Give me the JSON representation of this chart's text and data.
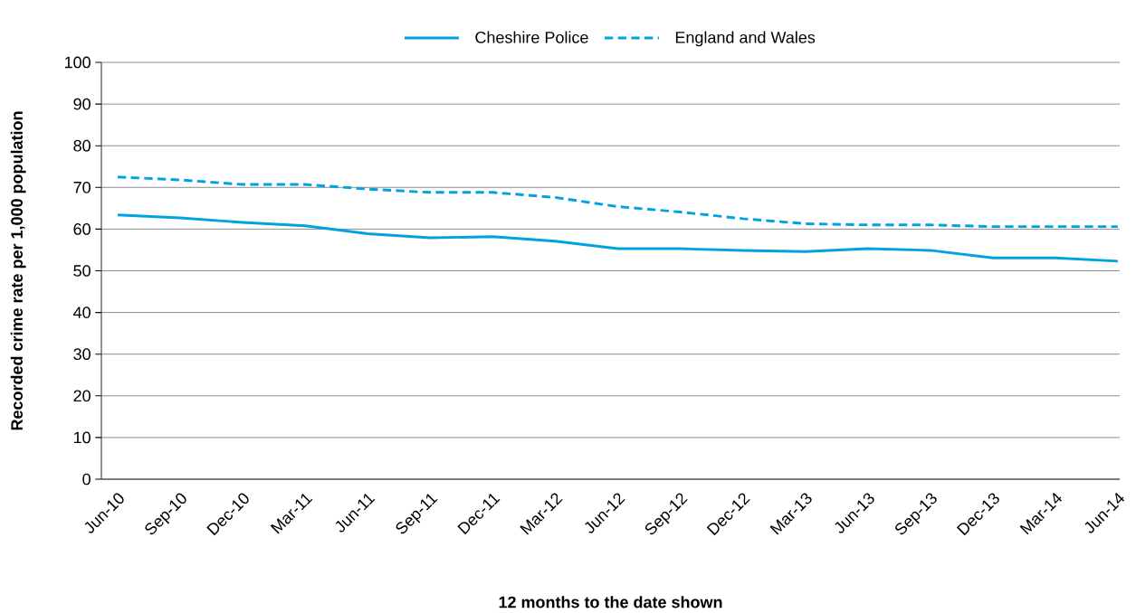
{
  "chart_data": {
    "type": "line",
    "xlabel": "12 months to the date shown",
    "ylabel": "Recorded crime rate per 1,000 population",
    "categories": [
      "Jun-10",
      "Sep-10",
      "Dec-10",
      "Mar-11",
      "Jun-11",
      "Sep-11",
      "Dec-11",
      "Mar-12",
      "Jun-12",
      "Sep-12",
      "Dec-12",
      "Mar-13",
      "Jun-13",
      "Sep-13",
      "Dec-13",
      "Mar-14",
      "Jun-14"
    ],
    "series": [
      {
        "name": "Cheshire Police",
        "color": "#00a3e0",
        "line_style": "solid",
        "values": [
          63.4,
          62.7,
          61.6,
          60.8,
          58.9,
          57.9,
          58.2,
          57.1,
          55.3,
          55.3,
          54.9,
          54.6,
          55.3,
          54.9,
          53.1,
          53.1,
          52.3
        ]
      },
      {
        "name": "England and Wales",
        "color": "#00a3e0",
        "line_style": "dashed",
        "values": [
          72.5,
          71.8,
          70.7,
          70.7,
          69.6,
          68.8,
          68.8,
          67.6,
          65.4,
          64.1,
          62.5,
          61.3,
          61.0,
          61.0,
          60.6,
          60.6,
          60.6
        ]
      }
    ],
    "ylim": [
      0,
      100
    ],
    "yticks": [
      0,
      10,
      20,
      30,
      40,
      50,
      60,
      70,
      80,
      90,
      100
    ],
    "grid": "y",
    "legend": "top",
    "marker": "none"
  }
}
